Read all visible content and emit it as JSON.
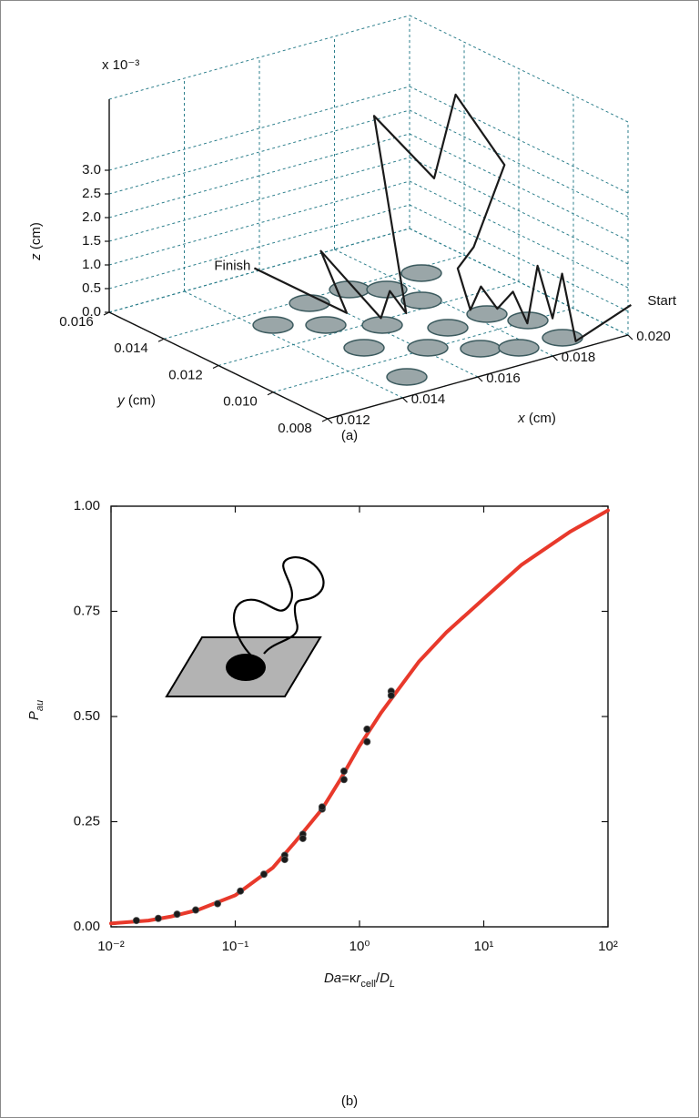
{
  "chart_data": [
    {
      "type": "line3d",
      "caption": "(a)",
      "multiplier_label": "x 10⁻³",
      "xlabel": [
        "x",
        " (cm)"
      ],
      "ylabel": [
        "y",
        " (cm)"
      ],
      "zlabel": [
        "z",
        " (cm)"
      ],
      "start_label": "Start",
      "finish_label": "Finish",
      "xlim": [
        0.012,
        0.02
      ],
      "xticks": [
        0.012,
        0.014,
        0.016,
        0.018,
        {
          "value": 0.02,
          "label": "0.020"
        }
      ],
      "ylim": [
        0.008,
        0.016
      ],
      "yticks": [
        0.008,
        {
          "value": 0.01,
          "label": "0.010"
        },
        0.012,
        0.014,
        0.016
      ],
      "zlim": [
        0,
        4.5
      ],
      "zticks": [
        {
          "value": 0,
          "label": "0.0"
        },
        0.5,
        {
          "value": 1,
          "label": "1.0"
        },
        1.5,
        {
          "value": 2,
          "label": "2.0"
        },
        2.5,
        {
          "value": 3,
          "label": "3.0"
        }
      ],
      "grid": true,
      "grid_color": "#2d7f8c",
      "series": [
        {
          "color": "#1a1a1a",
          "x": [
            0.0211,
            0.0189,
            0.0197,
            0.0193,
            0.0189,
            0.0187,
            0.0189,
            0.0187,
            0.0187,
            0.0182,
            0.0191,
            0.0188,
            0.0202,
            0.0205,
            0.0192,
            0.0192,
            0.017,
            0.017,
            0.0164,
            0.0164,
            0.016,
            0.0155
          ],
          "y": [
            0.0094,
            0.0084,
            0.01,
            0.0098,
            0.0098,
            0.0099,
            0.0107,
            0.011,
            0.0116,
            0.0113,
            0.013,
            0.012,
            0.0128,
            0.015,
            0.014,
            0.0162,
            0.012,
            0.0126,
            0.0121,
            0.0143,
            0.0128,
            0.0155
          ],
          "z": [
            0,
            0,
            0.8,
            0,
            1.2,
            0,
            0.4,
            0,
            0.3,
            0,
            0.2,
            1.0,
            2.2,
            3.0,
            1.8,
            2.5,
            0,
            0.3,
            0,
            0.8,
            0,
            0.3
          ]
        }
      ]
    },
    {
      "type": "line",
      "caption": "(b)",
      "xlabel": [
        "Da",
        "=κ",
        "r",
        "cell",
        "/",
        "D",
        "L"
      ],
      "ylabel": [
        "P",
        "au"
      ],
      "xscale": "log",
      "xlim": [
        0.01,
        100
      ],
      "xticks": [
        {
          "value": 0.01,
          "label": "10⁻²"
        },
        {
          "value": 0.1,
          "label": "10⁻¹"
        },
        {
          "value": 1,
          "label": "10⁰"
        },
        {
          "value": 10,
          "label": "10¹"
        },
        {
          "value": 100,
          "label": "10²"
        }
      ],
      "ylim": [
        0,
        1
      ],
      "yticks": [
        {
          "value": 0,
          "label": "0.00"
        },
        0.25,
        {
          "value": 0.5,
          "label": "0.50"
        },
        0.75,
        {
          "value": 1,
          "label": "1.00"
        }
      ],
      "series": [
        {
          "type": "line",
          "color": "#e8392b",
          "x": [
            0.01,
            0.02,
            0.03,
            0.05,
            0.1,
            0.2,
            0.3,
            0.5,
            0.7,
            1,
            1.5,
            2,
            3,
            5,
            10,
            20,
            50,
            100
          ],
          "values": [
            0.008,
            0.015,
            0.024,
            0.04,
            0.075,
            0.14,
            0.2,
            0.28,
            0.35,
            0.43,
            0.51,
            0.56,
            0.63,
            0.7,
            0.78,
            0.86,
            0.94,
            0.99
          ]
        },
        {
          "type": "scatter",
          "color": "#1a1a1a",
          "x": [
            0.016,
            0.024,
            0.034,
            0.048,
            0.072,
            0.11,
            0.17,
            0.25,
            0.25,
            0.35,
            0.35,
            0.5,
            0.5,
            0.75,
            0.75,
            1.15,
            1.15,
            1.8,
            1.8
          ],
          "values": [
            0.015,
            0.02,
            0.03,
            0.04,
            0.055,
            0.085,
            0.125,
            0.17,
            0.16,
            0.22,
            0.21,
            0.28,
            0.285,
            0.37,
            0.35,
            0.47,
            0.44,
            0.56,
            0.55
          ]
        }
      ]
    }
  ]
}
